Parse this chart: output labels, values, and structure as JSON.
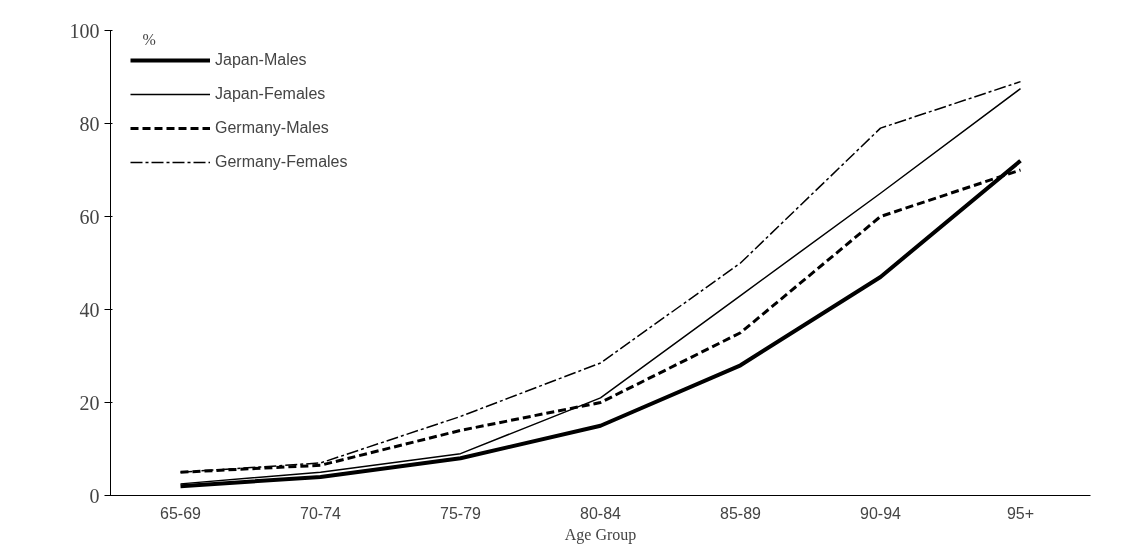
{
  "chart_data": {
    "type": "line",
    "xlabel": "Age Group",
    "ylabel": "%",
    "categories": [
      "65-69",
      "70-74",
      "75-79",
      "80-84",
      "85-89",
      "90-94",
      "95+"
    ],
    "series": [
      {
        "name": "Japan-Males",
        "color": "#000000",
        "line_style": "solid",
        "values": [
          2,
          4,
          8,
          15,
          28,
          47,
          72
        ]
      },
      {
        "name": "Japan-Females",
        "color": "#000000",
        "line_style": "solid",
        "values": [
          2.5,
          5,
          9,
          21,
          43,
          65,
          87.5
        ]
      },
      {
        "name": "Germany-Males",
        "color": "#000000",
        "line_style": "dashed",
        "values": [
          5,
          6.5,
          14,
          20,
          35,
          60,
          70
        ]
      },
      {
        "name": "Germany-Females",
        "color": "#000000",
        "line_style": "dashdot",
        "values": [
          5,
          7,
          17,
          28.5,
          50,
          79,
          89
        ]
      }
    ],
    "ylim": [
      0,
      100
    ],
    "yticks": [
      0,
      20,
      40,
      60,
      80,
      100
    ],
    "grid": false,
    "legend": "top left",
    "marker": "none"
  }
}
